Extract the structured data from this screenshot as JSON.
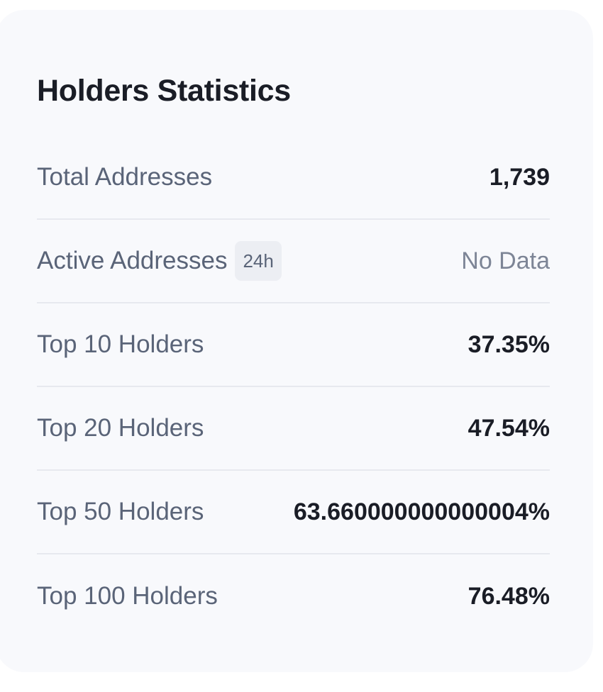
{
  "card": {
    "title": "Holders Statistics"
  },
  "stats": {
    "total_addresses": {
      "label": "Total Addresses",
      "value": "1,739"
    },
    "active_addresses": {
      "label": "Active Addresses",
      "badge": "24h",
      "value": "No Data"
    },
    "top10": {
      "label": "Top 10 Holders",
      "value": "37.35%"
    },
    "top20": {
      "label": "Top 20 Holders",
      "value": "47.54%"
    },
    "top50": {
      "label": "Top 50 Holders",
      "value": "63.660000000000004%"
    },
    "top100": {
      "label": "Top 100 Holders",
      "value": "76.48%"
    }
  },
  "colors": {
    "card_background": "#f8f9fc",
    "title": "#1a1d26",
    "label": "#5a6478",
    "value": "#1a1d26",
    "muted_value": "#7d8596",
    "divider": "#e7e9ef",
    "badge_background": "#eceef3"
  }
}
